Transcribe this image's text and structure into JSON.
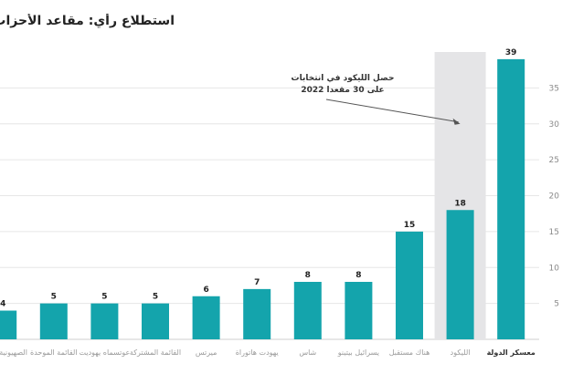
{
  "chart_data": {
    "type": "bar",
    "title": "استطلاع رأي: مقاعد الأحزاب الإسرائيلية",
    "categories": [
      "معسكر الدولة",
      "الليكود",
      "هناك مستقبل",
      "يسرائيل بيتينو",
      "شاس",
      "يهودت هاتوراة",
      "ميرتس",
      "القائمة المشتركة",
      "عوتسماه يهوديت",
      "القائمة الموحدة",
      "الصهيونية الدينية"
    ],
    "values": [
      39,
      18,
      15,
      8,
      8,
      7,
      6,
      5,
      5,
      5,
      4
    ],
    "ylim": [
      0,
      40
    ],
    "y_ticks": [
      5,
      10,
      15,
      20,
      25,
      30,
      35
    ],
    "highlight_category": "الليكود",
    "emphasized_category": "معسكر الدولة",
    "grid": true,
    "annotation": {
      "lines": [
        "حصل الليكود في انتخابات",
        "2022 على 30 مقعدا"
      ],
      "value": 30,
      "category": "الليكود"
    },
    "colors": {
      "bar": "#14a4ac",
      "highlight_band": "#e5e5e7",
      "grid": "#e6e6e6"
    }
  }
}
